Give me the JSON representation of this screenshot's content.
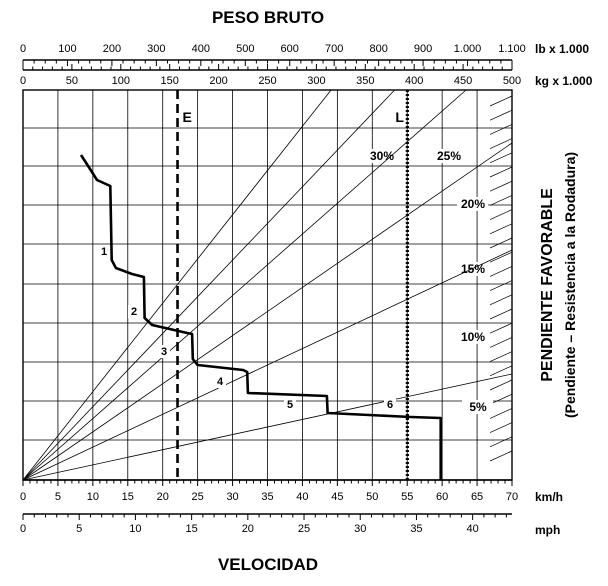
{
  "chart_data": {
    "type": "line",
    "title": "PESO BRUTO",
    "xlabel": "VELOCIDAD",
    "ylabel": "PENDIENTE FAVORABLE",
    "ylabel_sub": "(Pendiente – Resistencia a la Rodadura)",
    "axes": {
      "weight_lb": {
        "unit": "lb x 1.000",
        "range": [
          0,
          1100
        ],
        "ticks": [
          "0",
          "100",
          "200",
          "300",
          "400",
          "500",
          "600",
          "700",
          "800",
          "900",
          "1.000",
          "1.100"
        ]
      },
      "weight_kg": {
        "unit": "kg x 1.000",
        "range": [
          0,
          500
        ],
        "ticks": [
          "0",
          "50",
          "100",
          "150",
          "200",
          "250",
          "300",
          "350",
          "400",
          "450",
          "500"
        ]
      },
      "speed_kmh": {
        "unit": "km/h",
        "range": [
          0,
          70
        ],
        "ticks": [
          "0",
          "5",
          "10",
          "15",
          "20",
          "25",
          "30",
          "35",
          "40",
          "45",
          "50",
          "55",
          "60",
          "65",
          "70"
        ]
      },
      "speed_mph": {
        "unit": "mph",
        "range": [
          0,
          43.5
        ],
        "ticks": [
          "0",
          "5",
          "10",
          "15",
          "20",
          "25",
          "30",
          "35",
          "40"
        ]
      }
    },
    "grade_lines": [
      {
        "label": "30%",
        "weight_kg_at_top": 315
      },
      {
        "label": "25%",
        "weight_kg_at_top": 380
      },
      {
        "label": "20%",
        "weight_kg_at_top": 453
      },
      {
        "label": "15%",
        "weight_kg_at_top": 500
      },
      {
        "label": "10%",
        "weight_kg_at_top": 500
      },
      {
        "label": "5%",
        "weight_kg_at_top": 500
      }
    ],
    "reference_lines": [
      {
        "label": "E",
        "weight_kg": 158,
        "style": "dashed"
      },
      {
        "label": "L",
        "weight_kg": 393,
        "style": "dotted"
      }
    ],
    "retarder_curve": {
      "gears": [
        {
          "label": "1",
          "speed_kmh": 11.5
        },
        {
          "label": "2",
          "speed_kmh": 15.5
        },
        {
          "label": "3",
          "speed_kmh": 20.0
        },
        {
          "label": "4",
          "speed_kmh": 27.0
        },
        {
          "label": "5",
          "speed_kmh": 37.5
        },
        {
          "label": "6",
          "speed_kmh": 50.0
        }
      ],
      "points": [
        {
          "speed_kmh": 8.3,
          "grade_pct": 32.5
        },
        {
          "speed_kmh": 9.5,
          "grade_pct": 31.2
        },
        {
          "speed_kmh": 10.6,
          "grade_pct": 30.0
        },
        {
          "speed_kmh": 12.5,
          "grade_pct": 29.4
        },
        {
          "speed_kmh": 12.7,
          "grade_pct": 22.0
        },
        {
          "speed_kmh": 13.3,
          "grade_pct": 21.2
        },
        {
          "speed_kmh": 15.6,
          "grade_pct": 20.6
        },
        {
          "speed_kmh": 17.3,
          "grade_pct": 20.3
        },
        {
          "speed_kmh": 17.4,
          "grade_pct": 16.2
        },
        {
          "speed_kmh": 18.5,
          "grade_pct": 15.5
        },
        {
          "speed_kmh": 23.5,
          "grade_pct": 14.7
        },
        {
          "speed_kmh": 24.2,
          "grade_pct": 14.6
        },
        {
          "speed_kmh": 24.3,
          "grade_pct": 12.1
        },
        {
          "speed_kmh": 25.0,
          "grade_pct": 11.5
        },
        {
          "speed_kmh": 31.5,
          "grade_pct": 11.0
        },
        {
          "speed_kmh": 32.1,
          "grade_pct": 10.8
        },
        {
          "speed_kmh": 32.2,
          "grade_pct": 8.7
        },
        {
          "speed_kmh": 43.5,
          "grade_pct": 8.4
        },
        {
          "speed_kmh": 43.6,
          "grade_pct": 6.7
        },
        {
          "speed_kmh": 55.5,
          "grade_pct": 6.3
        },
        {
          "speed_kmh": 59.8,
          "grade_pct": 6.2
        },
        {
          "speed_kmh": 59.8,
          "grade_pct": 0
        }
      ]
    },
    "grid": true,
    "legend": "none"
  }
}
